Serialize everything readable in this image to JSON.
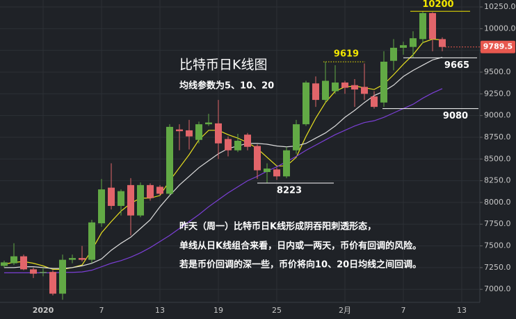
{
  "chart_data": {
    "type": "candlestick",
    "title": "比特币日K线图",
    "subtitle": "均线参数为5、10、20",
    "notes": [
      "昨天（周一）比特币日K线形成阴吞阳刺透形态，",
      "单线从日K线组合来看，日内或一两天，币价有回调的风险。",
      "若是币价回调的深一些，币价将向10、20日均线之间回调。"
    ],
    "categories": [
      null,
      null,
      null,
      null,
      "2020",
      null,
      null,
      null,
      null,
      null,
      "7",
      null,
      null,
      null,
      null,
      null,
      "13",
      null,
      null,
      null,
      null,
      null,
      "19",
      null,
      null,
      null,
      null,
      null,
      "25",
      null,
      null,
      null,
      null,
      null,
      null,
      "2月",
      null,
      null,
      null,
      null,
      null,
      "7",
      null,
      null,
      null,
      null,
      null,
      "13",
      null
    ],
    "open": [
      7270,
      7300,
      7380,
      7230,
      7190,
      7200,
      6950,
      7340,
      7360,
      7340,
      7760,
      8170,
      7960,
      8200,
      7850,
      8200,
      8180,
      8100,
      8840,
      8830,
      8720,
      8900,
      8910,
      8730,
      8600,
      8780,
      8650,
      8350,
      8380,
      8300,
      8600,
      8900,
      9370,
      9180,
      9280,
      9380,
      9350,
      9330,
      9220,
      9150,
      9630,
      9780,
      9790,
      9880,
      10180,
      9880,
      null,
      null,
      null
    ],
    "high": [
      7330,
      7530,
      7400,
      7250,
      7250,
      7220,
      7400,
      7400,
      7500,
      7800,
      8270,
      8450,
      8150,
      8280,
      8230,
      8220,
      8200,
      8900,
      8900,
      8950,
      8930,
      9020,
      9180,
      8760,
      8790,
      8800,
      8670,
      8450,
      8400,
      8640,
      8950,
      9400,
      9450,
      9619,
      9580,
      9400,
      9420,
      9600,
      9280,
      9740,
      9880,
      9850,
      9970,
      10200,
      10190,
      9900,
      null,
      null,
      null
    ],
    "low": [
      7250,
      7280,
      7220,
      7130,
      7150,
      6930,
      6880,
      7300,
      7320,
      7300,
      7720,
      7920,
      7850,
      7620,
      7830,
      8020,
      8080,
      8080,
      8600,
      8610,
      8680,
      8880,
      8500,
      8530,
      8580,
      8600,
      8270,
      8223,
      8260,
      8280,
      8560,
      8880,
      9100,
      9150,
      9250,
      9250,
      9100,
      9180,
      9080,
      9100,
      9520,
      9700,
      9670,
      9830,
      9740,
      9740,
      null,
      null,
      null
    ],
    "close": [
      7310,
      7380,
      7230,
      7180,
      7200,
      6950,
      7340,
      7360,
      7340,
      7770,
      8150,
      7960,
      8130,
      7850,
      8200,
      8050,
      8100,
      8870,
      8820,
      8760,
      8900,
      8920,
      8680,
      8600,
      8710,
      8640,
      8370,
      8390,
      8300,
      8600,
      8900,
      9380,
      9180,
      9400,
      9380,
      9320,
      9300,
      9250,
      9100,
      9620,
      9780,
      9810,
      9890,
      10180,
      9880,
      9789.5,
      null,
      null,
      null
    ],
    "up_color": "#62a945",
    "down_color": "#e2656a",
    "lines": [
      {
        "color": "#e8e020",
        "values": [
          7290,
          7310,
          7320,
          7300,
          7270,
          7230,
          7230,
          7250,
          7280,
          7450,
          7650,
          7780,
          7900,
          7990,
          8050,
          8050,
          8080,
          8250,
          8400,
          8550,
          8720,
          8830,
          8830,
          8780,
          8740,
          8690,
          8620,
          8520,
          8420,
          8420,
          8520,
          8760,
          8970,
          9150,
          9280,
          9330,
          9340,
          9320,
          9300,
          9360,
          9470,
          9590,
          9700,
          9840,
          9880,
          9870,
          null,
          null,
          null
        ]
      },
      {
        "color": "#dddddd",
        "values": [
          7250,
          7250,
          7260,
          7260,
          7250,
          7240,
          7240,
          7250,
          7270,
          7300,
          7350,
          7450,
          7530,
          7600,
          7700,
          7800,
          7950,
          8080,
          8200,
          8300,
          8400,
          8480,
          8560,
          8620,
          8650,
          8680,
          8680,
          8670,
          8650,
          8640,
          8650,
          8680,
          8740,
          8800,
          8880,
          8980,
          9060,
          9150,
          9230,
          9280,
          9350,
          9450,
          9520,
          9580,
          9640,
          9670,
          null,
          null,
          null
        ]
      },
      {
        "color": "#7b3fd6",
        "values": [
          7190,
          7190,
          7190,
          7190,
          7190,
          7190,
          7195,
          7195,
          7200,
          7220,
          7260,
          7300,
          7330,
          7370,
          7420,
          7480,
          7550,
          7620,
          7700,
          7780,
          7860,
          7950,
          8030,
          8110,
          8180,
          8250,
          8300,
          8360,
          8410,
          8470,
          8530,
          8600,
          8660,
          8720,
          8780,
          8830,
          8880,
          8920,
          8940,
          8980,
          9030,
          9080,
          9130,
          9200,
          9260,
          9310,
          null,
          null,
          null
        ]
      }
    ],
    "annotations": [
      {
        "value": 10200,
        "color": "#f2e600",
        "style": "solid"
      },
      {
        "value": 9619,
        "color": "#f2e600",
        "style": "dotted"
      },
      {
        "value": 9665,
        "color": "#ffffff",
        "style": "solid"
      },
      {
        "value": 9080,
        "color": "#ffffff",
        "style": "solid"
      },
      {
        "value": 8223,
        "color": "#ffffff",
        "style": "solid"
      }
    ],
    "last_price": 9789.5,
    "last_price_color": "#e8584f",
    "ylim": [
      6850,
      10330
    ],
    "yticks": [
      {
        "value": 7000,
        "label": "7000.0"
      },
      {
        "value": 7250,
        "label": "7250.0"
      },
      {
        "value": 7500,
        "label": "7500.0"
      },
      {
        "value": 7750,
        "label": "7750.0"
      },
      {
        "value": 8000,
        "label": "8000.0"
      },
      {
        "value": 8250,
        "label": "8250.0"
      },
      {
        "value": 8500,
        "label": "8500.0"
      },
      {
        "value": 8750,
        "label": "8750.0"
      },
      {
        "value": 9000,
        "label": "9000.0"
      },
      {
        "value": 9250,
        "label": "9250.0"
      },
      {
        "value": 9500,
        "label": "9500.0"
      },
      {
        "value": 9750,
        "label": "9750.0"
      },
      {
        "value": 10000,
        "label": "10000.0"
      },
      {
        "value": 10250,
        "label": "10250.0"
      }
    ],
    "grid": true
  }
}
